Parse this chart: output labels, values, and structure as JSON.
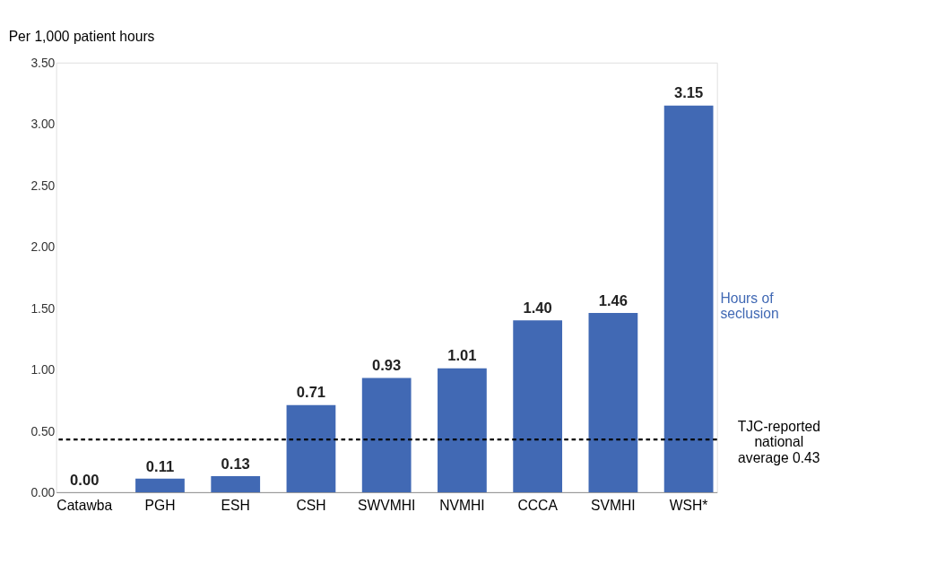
{
  "chart_data": {
    "type": "bar",
    "ylabel": "Per 1,000 patient hours",
    "categories": [
      "Catawba",
      "PGH",
      "ESH",
      "CSH",
      "SWVMHI",
      "NVMHI",
      "CCCA",
      "SVMHI",
      "WSH*"
    ],
    "series": [
      {
        "name": "Hours of seclusion",
        "color": "#4169b4",
        "values": [
          0.0,
          0.11,
          0.13,
          0.71,
          0.93,
          1.01,
          1.4,
          1.46,
          3.15
        ],
        "value_labels": [
          "0.00",
          "0.11",
          "0.13",
          "0.71",
          "0.93",
          "1.01",
          "1.40",
          "1.46",
          "3.15"
        ]
      }
    ],
    "ylim": [
      0,
      3.5
    ],
    "yticks": [
      {
        "value": 0,
        "label": "0.00"
      },
      {
        "value": 0.5,
        "label": "0.50"
      },
      {
        "value": 1,
        "label": "1.00"
      },
      {
        "value": 1.5,
        "label": "1.50"
      },
      {
        "value": 2,
        "label": "2.00"
      },
      {
        "value": 2.5,
        "label": "2.50"
      },
      {
        "value": 3,
        "label": "3.00"
      },
      {
        "value": 3.5,
        "label": "3.50"
      }
    ],
    "ref_lines": [
      {
        "axis": "y",
        "value": 0.43,
        "label": "TJC-reported national average 0.43",
        "line_style": "dashed",
        "color": "#000000"
      }
    ],
    "grid": false
  }
}
